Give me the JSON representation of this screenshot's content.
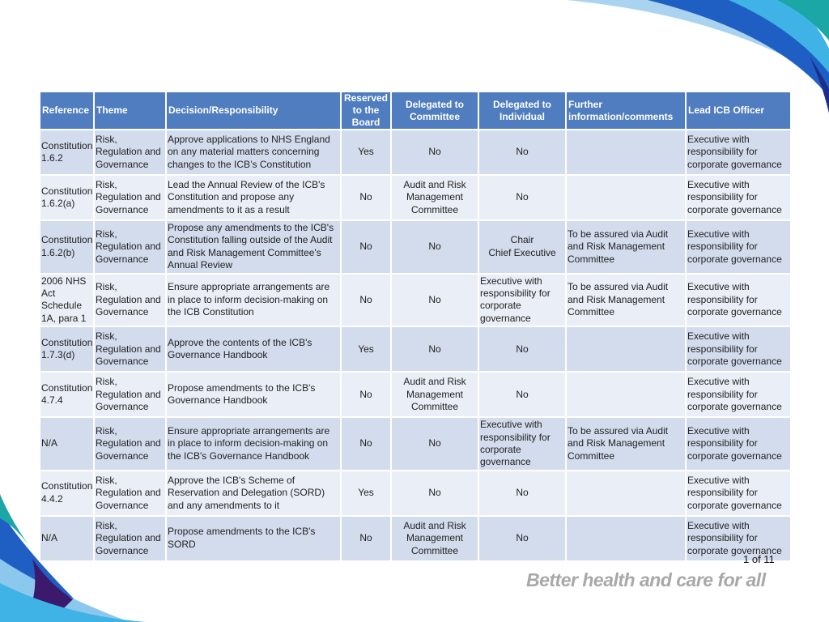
{
  "table": {
    "headers": {
      "reference": "Reference",
      "theme": "Theme",
      "decision": "Decision/Responsibility",
      "reserved": "Reserved to the Board",
      "delegated_committee": "Delegated to Committee",
      "delegated_individual": "Delegated to Individual",
      "further": "Further information/comments",
      "lead": "Lead ICB Officer"
    },
    "rows": [
      {
        "reference": "Constitution 1.6.2",
        "theme": "Risk, Regulation and Governance",
        "decision": "Approve applications to NHS England on any material matters concerning changes to the ICB’s Constitution",
        "reserved": "Yes",
        "delegated_committee": "No",
        "delegated_individual": "No",
        "further": "",
        "lead": "Executive with responsibility for corporate governance"
      },
      {
        "reference": "Constitution 1.6.2(a)",
        "theme": "Risk, Regulation and Governance",
        "decision": "Lead the Annual Review of the ICB's Constitution and propose any amendments to it as a result",
        "reserved": "No",
        "delegated_committee": "Audit and Risk Management Committee",
        "delegated_individual": "No",
        "further": "",
        "lead": "Executive with responsibility for corporate governance"
      },
      {
        "reference": "Constitution 1.6.2(b)",
        "theme": "Risk, Regulation and Governance",
        "decision": "Propose any amendments to the ICB's Constitution falling outside of the Audit and Risk Management Committee's Annual Review",
        "reserved": "No",
        "delegated_committee": "No",
        "delegated_individual": "Chair\nChief Executive",
        "further": "To be assured via Audit and Risk Management Committee",
        "lead": "Executive with responsibility for corporate governance"
      },
      {
        "reference": "2006 NHS Act Schedule 1A, para 1",
        "theme": "Risk, Regulation and Governance",
        "decision": "Ensure appropriate arrangements are in place to inform decision-making on the ICB Constitution",
        "reserved": "No",
        "delegated_committee": "No",
        "delegated_individual": "Executive with responsibility for corporate governance",
        "further": "To be assured via Audit and Risk Management Committee",
        "lead": "Executive with responsibility for corporate governance"
      },
      {
        "reference": "Constitution 1.7.3(d)",
        "theme": "Risk, Regulation and Governance",
        "decision": "Approve the contents of the ICB's Governance Handbook",
        "reserved": "Yes",
        "delegated_committee": "No",
        "delegated_individual": "No",
        "further": "",
        "lead": "Executive with responsibility for corporate governance"
      },
      {
        "reference": "Constitution 4.7.4",
        "theme": "Risk, Regulation and Governance",
        "decision": "Propose amendments to the ICB's Governance Handbook",
        "reserved": "No",
        "delegated_committee": "Audit and Risk Management Committee",
        "delegated_individual": "No",
        "further": "",
        "lead": "Executive with responsibility for corporate governance"
      },
      {
        "reference": "N/A",
        "theme": "Risk, Regulation and Governance",
        "decision": "Ensure appropriate arrangements are in place to inform decision-making on the ICB's Governance Handbook",
        "reserved": "No",
        "delegated_committee": "No",
        "delegated_individual": "Executive with responsibility for corporate governance",
        "further": "To be assured via Audit and Risk Management Committee",
        "lead": "Executive with responsibility for corporate governance"
      },
      {
        "reference": "Constitution 4.4.2",
        "theme": "Risk, Regulation and Governance",
        "decision": "Approve the ICB's Scheme of Reservation and Delegation (SORD) and any amendments to it",
        "reserved": "Yes",
        "delegated_committee": "No",
        "delegated_individual": "No",
        "further": "",
        "lead": "Executive with responsibility for corporate governance"
      },
      {
        "reference": "N/A",
        "theme": "Risk, Regulation and Governance",
        "decision": "Propose amendments to the ICB's SORD",
        "reserved": "No",
        "delegated_committee": "Audit and Risk Management Committee",
        "delegated_individual": "No",
        "further": "",
        "lead": "Executive with responsibility for corporate governance"
      }
    ]
  },
  "footer": {
    "page_number": "1 of 11",
    "tagline": "Better health and care for all"
  },
  "colors": {
    "header_bg": "#4f7dc0",
    "row_odd": "#d3dced",
    "row_even": "#eaeef6",
    "accent_teal": "#1aa7a6",
    "accent_blue": "#1f5fc4",
    "accent_navy": "#1b2f8a",
    "accent_purple": "#3b1a6e"
  }
}
